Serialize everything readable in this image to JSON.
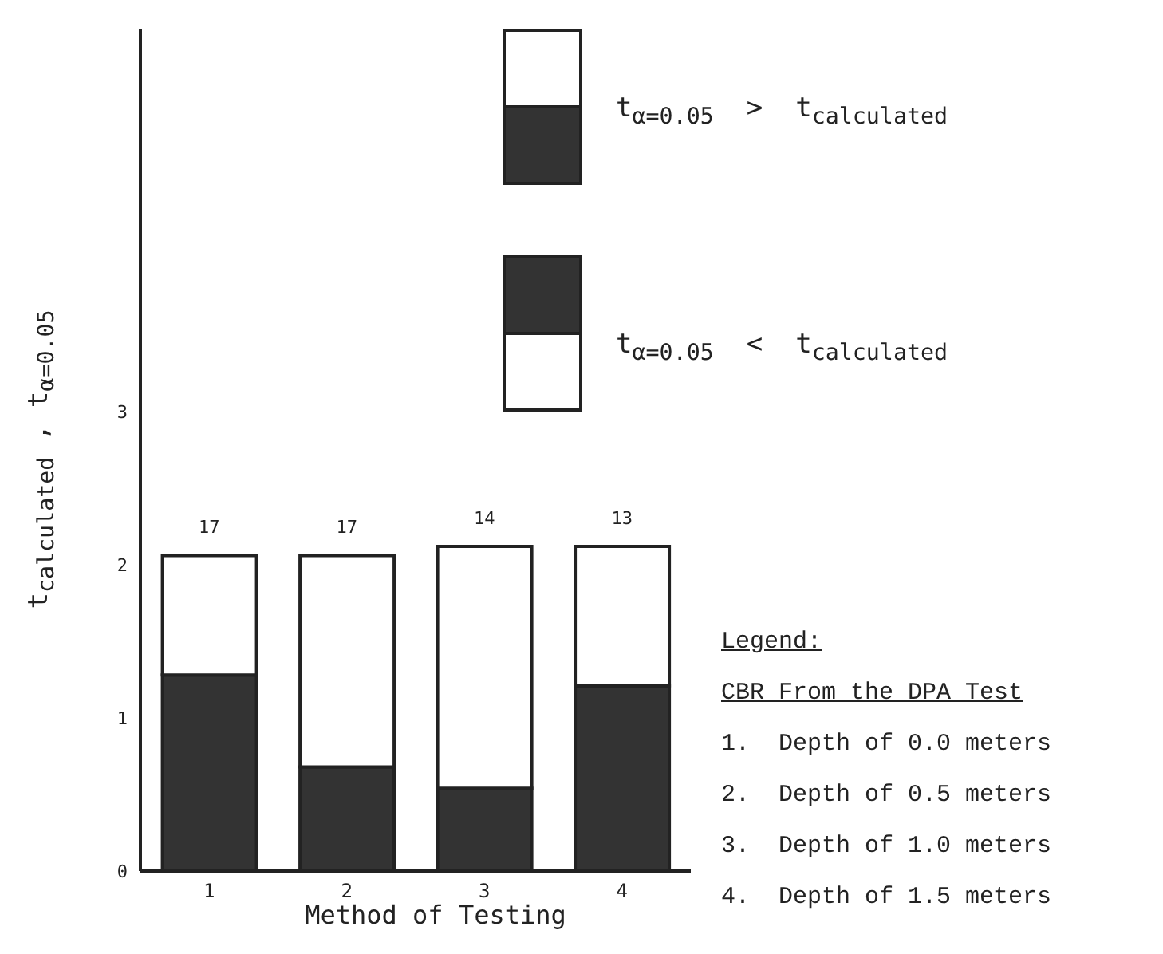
{
  "chart_data": {
    "type": "bar",
    "stacked": true,
    "xlabel": "Method of Testing",
    "ylabel": "t$_{calculated}$ , t$_{α=0.05}$",
    "categories": [
      "1",
      "2",
      "3",
      "4"
    ],
    "series": [
      {
        "color": "#333333",
        "values": [
          1.28,
          0.68,
          0.54,
          1.21
        ]
      },
      {
        "color": "#ffffff",
        "values": [
          0.78,
          1.38,
          1.58,
          0.91
        ]
      }
    ],
    "ylim": [
      0,
      5.5
    ],
    "yticks": [
      0,
      1,
      2,
      3
    ],
    "grid": false,
    "legend": false,
    "annotations": [
      "t$_{α=0.05}$  >  t$_{calculated}$",
      "t$_{α=0.05}$  <  t$_{calculated}$",
      "Legend:",
      "CBR From the DPA Test",
      "1.  Depth of 0.0 meters",
      "2.  Depth of 0.5 meters",
      "3.  Depth of 1.0 meters",
      "4.  Depth of 1.5 meters",
      {
        "text": "17",
        "x": "1",
        "y": 2.06
      },
      {
        "text": "17",
        "x": "2",
        "y": 2.06
      },
      {
        "text": "14",
        "x": "3",
        "y": 2.12
      },
      {
        "text": "13",
        "x": "4",
        "y": 2.12
      }
    ]
  }
}
